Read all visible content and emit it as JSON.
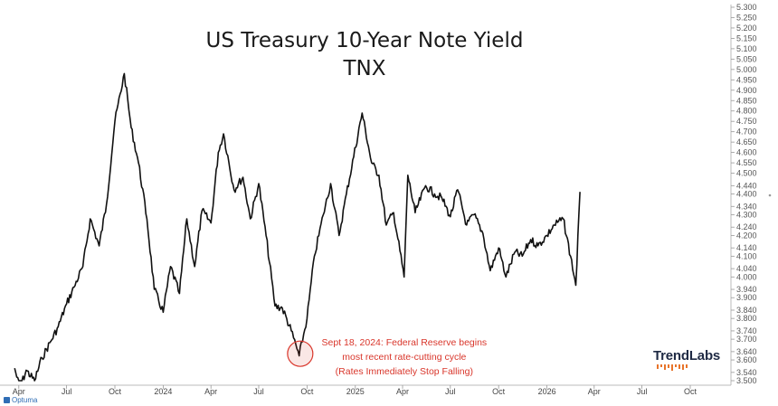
{
  "chart_data": {
    "type": "line",
    "title": "US Treasury 10-Year Note Yield",
    "subtitle": "TNX",
    "y_ticks": [
      "5.300",
      "5.250",
      "5.200",
      "5.150",
      "5.100",
      "5.050",
      "5.000",
      "4.950",
      "4.900",
      "4.850",
      "4.800",
      "4.750",
      "4.700",
      "4.650",
      "4.600",
      "4.550",
      "4.500",
      "4.440",
      "4.400",
      "4.340",
      "4.300",
      "4.240",
      "4.200",
      "4.140",
      "4.100",
      "4.040",
      "4.000",
      "3.940",
      "3.900",
      "3.840",
      "3.800",
      "3.740",
      "3.700",
      "3.640",
      "3.600",
      "3.540",
      "3.500"
    ],
    "x_ticks": [
      "Apr",
      "Jul",
      "Oct",
      "2024",
      "Apr",
      "Jul",
      "Oct",
      "2025",
      "Apr",
      "Jul",
      "Oct",
      "2026",
      "Apr",
      "Jul",
      "Oct"
    ],
    "ylim": [
      3.5,
      5.3
    ],
    "x": [
      "2023-03-24",
      "2023-04-03",
      "2023-04-15",
      "2023-05-01",
      "2023-05-15",
      "2023-06-01",
      "2023-06-15",
      "2023-07-01",
      "2023-07-15",
      "2023-08-01",
      "2023-08-15",
      "2023-09-01",
      "2023-09-15",
      "2023-10-01",
      "2023-10-19",
      "2023-11-01",
      "2023-11-15",
      "2023-12-01",
      "2023-12-15",
      "2024-01-01",
      "2024-01-15",
      "2024-02-01",
      "2024-02-15",
      "2024-03-01",
      "2024-03-15",
      "2024-04-01",
      "2024-04-15",
      "2024-04-25",
      "2024-05-15",
      "2024-06-01",
      "2024-06-15",
      "2024-07-01",
      "2024-07-15",
      "2024-08-01",
      "2024-08-15",
      "2024-09-01",
      "2024-09-16",
      "2024-10-01",
      "2024-10-15",
      "2024-11-01",
      "2024-11-15",
      "2024-12-01",
      "2024-12-15",
      "2025-01-14",
      "2025-02-01",
      "2025-02-15",
      "2025-03-01",
      "2025-03-15",
      "2025-04-04",
      "2025-04-11",
      "2025-04-25",
      "2025-05-15",
      "2025-06-01",
      "2025-06-15",
      "2025-07-01",
      "2025-07-15",
      "2025-08-01",
      "2025-08-15",
      "2025-09-01",
      "2025-09-15",
      "2025-10-01",
      "2025-10-15",
      "2025-11-01",
      "2025-11-15",
      "2025-12-01",
      "2025-12-15",
      "2026-01-01",
      "2026-01-15",
      "2026-02-01",
      "2026-02-15",
      "2026-02-25",
      "2026-03-05"
    ],
    "y": [
      3.56,
      3.46,
      3.55,
      3.5,
      3.61,
      3.69,
      3.76,
      3.87,
      3.95,
      4.05,
      4.28,
      4.15,
      4.35,
      4.75,
      4.98,
      4.72,
      4.55,
      4.28,
      3.94,
      3.83,
      4.05,
      3.92,
      4.28,
      4.05,
      4.32,
      4.26,
      4.6,
      4.69,
      4.42,
      4.48,
      4.28,
      4.45,
      4.2,
      3.86,
      3.85,
      3.74,
      3.62,
      3.8,
      4.1,
      4.3,
      4.45,
      4.2,
      4.4,
      4.79,
      4.55,
      4.49,
      4.25,
      4.31,
      4.0,
      4.49,
      4.31,
      4.44,
      4.4,
      4.38,
      4.29,
      4.42,
      4.25,
      4.3,
      4.21,
      4.03,
      4.14,
      4.0,
      4.12,
      4.1,
      4.18,
      4.15,
      4.2,
      4.25,
      4.28,
      4.1,
      3.96,
      4.41
    ],
    "annotation": {
      "x": "2024-09-18",
      "y": 3.63,
      "lines": [
        "Sept 18, 2024: Federal Reserve begins",
        "most recent rate-cutting cycle",
        "(Rates Immediately Stop Falling)"
      ],
      "color": "#d9362b"
    },
    "line_color": "#111111",
    "grid": false
  },
  "branding": {
    "name": "TrendLabs",
    "accent": "#e8742a"
  },
  "footer": {
    "source": "Optuma"
  }
}
